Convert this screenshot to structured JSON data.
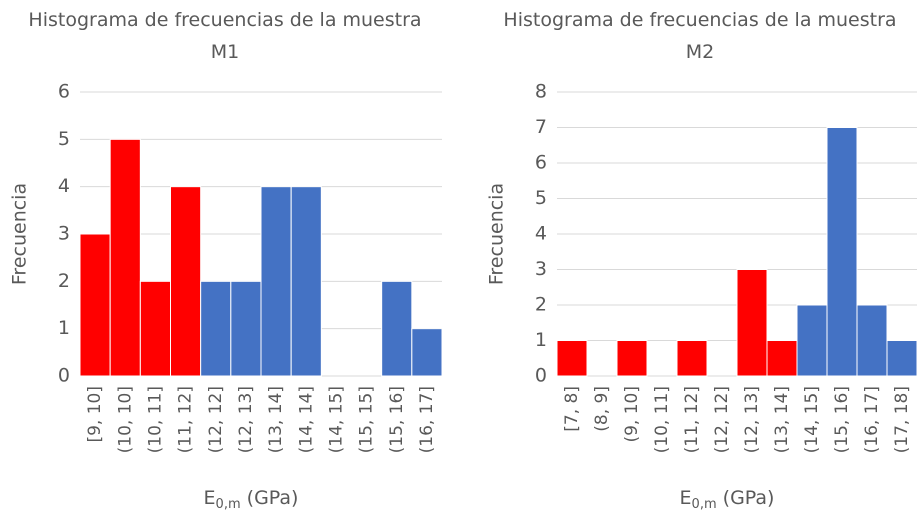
{
  "chart_data": [
    {
      "type": "bar",
      "title": "Histograma de frecuencias de la muestra M1",
      "categories": [
        "[9, 10]",
        "(10, 10]",
        "(10, 11]",
        "(11, 12]",
        "(12, 12]",
        "(12, 13]",
        "(13, 14]",
        "(14, 14]",
        "(14, 15]",
        "(15, 15]",
        "(15, 16]",
        "(16, 17]"
      ],
      "values": [
        3,
        5,
        2,
        4,
        2,
        2,
        4,
        4,
        0,
        0,
        2,
        1
      ],
      "colors": [
        "#ff0000",
        "#ff0000",
        "#ff0000",
        "#ff0000",
        "#4472c4",
        "#4472c4",
        "#4472c4",
        "#4472c4",
        "#4472c4",
        "#4472c4",
        "#4472c4",
        "#4472c4"
      ],
      "ylabel": "Frecuencia",
      "xlabel": "E",
      "xlabel_sub": "0,m",
      "xlabel_suffix": " (GPa)",
      "ylim": [
        0,
        6
      ],
      "yticks": [
        0,
        1,
        2,
        3,
        4,
        5,
        6
      ],
      "grid": true
    },
    {
      "type": "bar",
      "title": "Histograma de frecuencias de la muestra M2",
      "categories": [
        "[7, 8]",
        "(8, 9]",
        "(9, 10]",
        "(10, 11]",
        "(11, 12]",
        "(12, 12]",
        "(12, 13]",
        "(13, 14]",
        "(14, 15]",
        "(15, 16]",
        "(16, 17]",
        "(17, 18]"
      ],
      "values": [
        1,
        0,
        1,
        0,
        1,
        0,
        3,
        1,
        2,
        7,
        2,
        1
      ],
      "colors": [
        "#ff0000",
        "#ff0000",
        "#ff0000",
        "#ff0000",
        "#ff0000",
        "#ff0000",
        "#ff0000",
        "#ff0000",
        "#4472c4",
        "#4472c4",
        "#4472c4",
        "#4472c4"
      ],
      "ylabel": "Frecuencia",
      "xlabel": "E",
      "xlabel_sub": "0,m",
      "xlabel_suffix": " (GPa)",
      "ylim": [
        0,
        8
      ],
      "yticks": [
        0,
        1,
        2,
        3,
        4,
        5,
        6,
        7,
        8
      ],
      "grid": true
    }
  ]
}
